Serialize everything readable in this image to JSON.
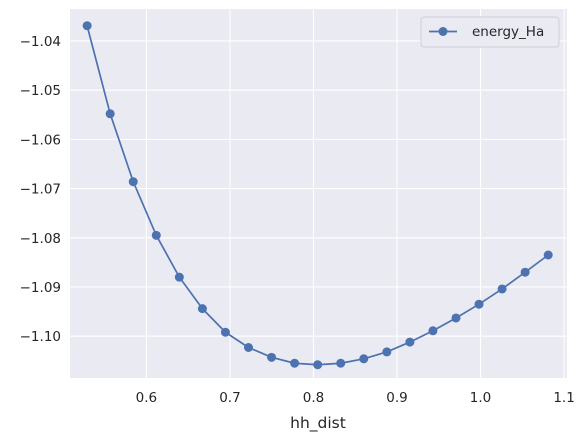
{
  "chart_data": {
    "type": "line",
    "title": "",
    "xlabel": "hh_dist",
    "ylabel": "",
    "xlim": [
      0.5085,
      1.1035
    ],
    "ylim": [
      -1.1085,
      -1.0335
    ],
    "xticks": [
      0.6,
      0.7,
      0.8,
      0.9,
      1.0,
      1.1
    ],
    "xtick_labels": [
      "0.6",
      "0.7",
      "0.8",
      "0.9",
      "1.0",
      "1.1"
    ],
    "yticks": [
      -1.04,
      -1.05,
      -1.06,
      -1.07,
      -1.08,
      -1.09,
      -1.1
    ],
    "ytick_labels": [
      "−1.04",
      "−1.05",
      "−1.06",
      "−1.07",
      "−1.08",
      "−1.09",
      "−1.10"
    ],
    "grid": true,
    "legend_position": "top-right",
    "series": [
      {
        "name": "energy_Ha",
        "color": "#4c72b0",
        "marker": "circle",
        "x": [
          0.529,
          0.5566,
          0.5842,
          0.6118,
          0.6394,
          0.667,
          0.6946,
          0.7222,
          0.7498,
          0.7774,
          0.805,
          0.8326,
          0.8602,
          0.8878,
          0.9154,
          0.943,
          0.9706,
          0.9982,
          1.0258,
          1.0534,
          1.081
        ],
        "y": [
          -1.0369,
          -1.0548,
          -1.0686,
          -1.0795,
          -1.088,
          -1.0944,
          -1.0992,
          -1.1023,
          -1.1043,
          -1.1055,
          -1.1058,
          -1.1055,
          -1.1046,
          -1.1032,
          -1.1012,
          -1.0989,
          -1.0963,
          -1.0935,
          -1.0904,
          -1.087,
          -1.0835
        ]
      }
    ]
  }
}
